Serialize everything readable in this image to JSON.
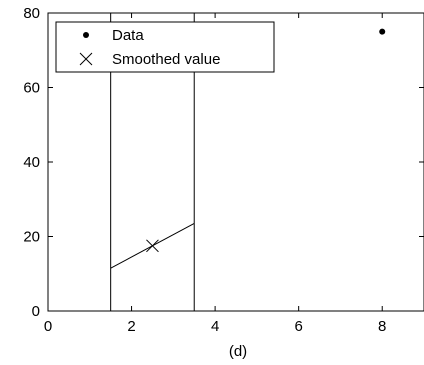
{
  "chart_data": {
    "type": "scatter",
    "title": "",
    "xlabel": "(d)",
    "ylabel": "",
    "xlim": [
      0,
      9
    ],
    "ylim": [
      0,
      80
    ],
    "xticks": [
      0,
      2,
      4,
      6,
      8
    ],
    "yticks": [
      0,
      20,
      40,
      60,
      80
    ],
    "grid": false,
    "legend_position": "top-left",
    "legend": [
      "Data",
      "Smoothed value"
    ],
    "series": [
      {
        "name": "Data",
        "marker": "dot",
        "points": [
          {
            "x": 8,
            "y": 75
          }
        ]
      },
      {
        "name": "Smoothed value",
        "marker": "x",
        "points": [
          {
            "x": 2.5,
            "y": 17.5
          }
        ]
      }
    ],
    "window": {
      "x_start": 1.5,
      "x_end": 3.5
    },
    "fit_line": {
      "x1": 1.5,
      "y1": 11.5,
      "x2": 3.5,
      "y2": 23.5
    }
  }
}
